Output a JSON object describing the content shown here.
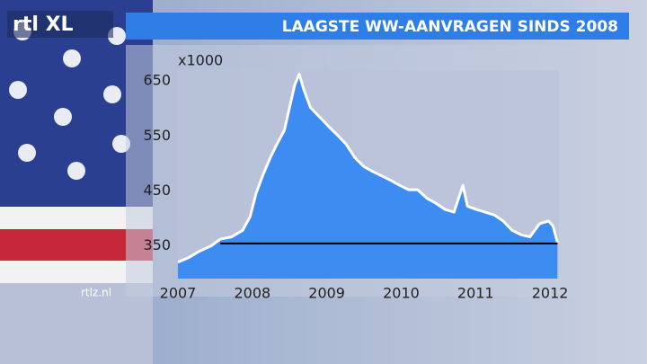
{
  "logo": "rtl XL",
  "website": "rtlz.nl",
  "chart_data": {
    "type": "area",
    "title": "LAAGSTE WW-AANVRAGEN SINDS 2008",
    "y_unit": "x1000",
    "color": "#3d8cf2",
    "line_color": "#ffffff",
    "x": [
      2007.0,
      2007.14,
      2007.29,
      2007.45,
      2007.57,
      2007.72,
      2007.87,
      2007.97,
      2008.05,
      2008.14,
      2008.24,
      2008.33,
      2008.43,
      2008.5,
      2008.57,
      2008.63,
      2008.69,
      2008.78,
      2008.9,
      2009.02,
      2009.14,
      2009.26,
      2009.38,
      2009.5,
      2009.62,
      2009.74,
      2009.86,
      2009.98,
      2010.1,
      2010.22,
      2010.35,
      2010.47,
      2010.59,
      2010.71,
      2010.83,
      2010.89,
      2011.01,
      2011.13,
      2011.25,
      2011.37,
      2011.49,
      2011.61,
      2011.73,
      2011.86,
      2011.98,
      2012.04,
      2012.1
    ],
    "values": [
      320,
      328,
      340,
      350,
      362,
      366,
      378,
      403,
      445,
      478,
      510,
      535,
      560,
      602,
      643,
      663,
      635,
      602,
      585,
      568,
      552,
      535,
      510,
      494,
      485,
      477,
      469,
      460,
      452,
      452,
      436,
      427,
      416,
      411,
      460,
      422,
      416,
      411,
      406,
      395,
      378,
      370,
      366,
      390,
      395,
      386,
      356
    ],
    "reference_line": {
      "value": 354,
      "x": [
        2007.57,
        2012.1
      ]
    },
    "xlim": [
      2007,
      2012.12
    ],
    "xticks": [
      2007,
      2008,
      2009,
      2010,
      2011,
      2012
    ],
    "ylim": [
      290,
      670
    ],
    "yticks": [
      350,
      450,
      550,
      650
    ]
  }
}
